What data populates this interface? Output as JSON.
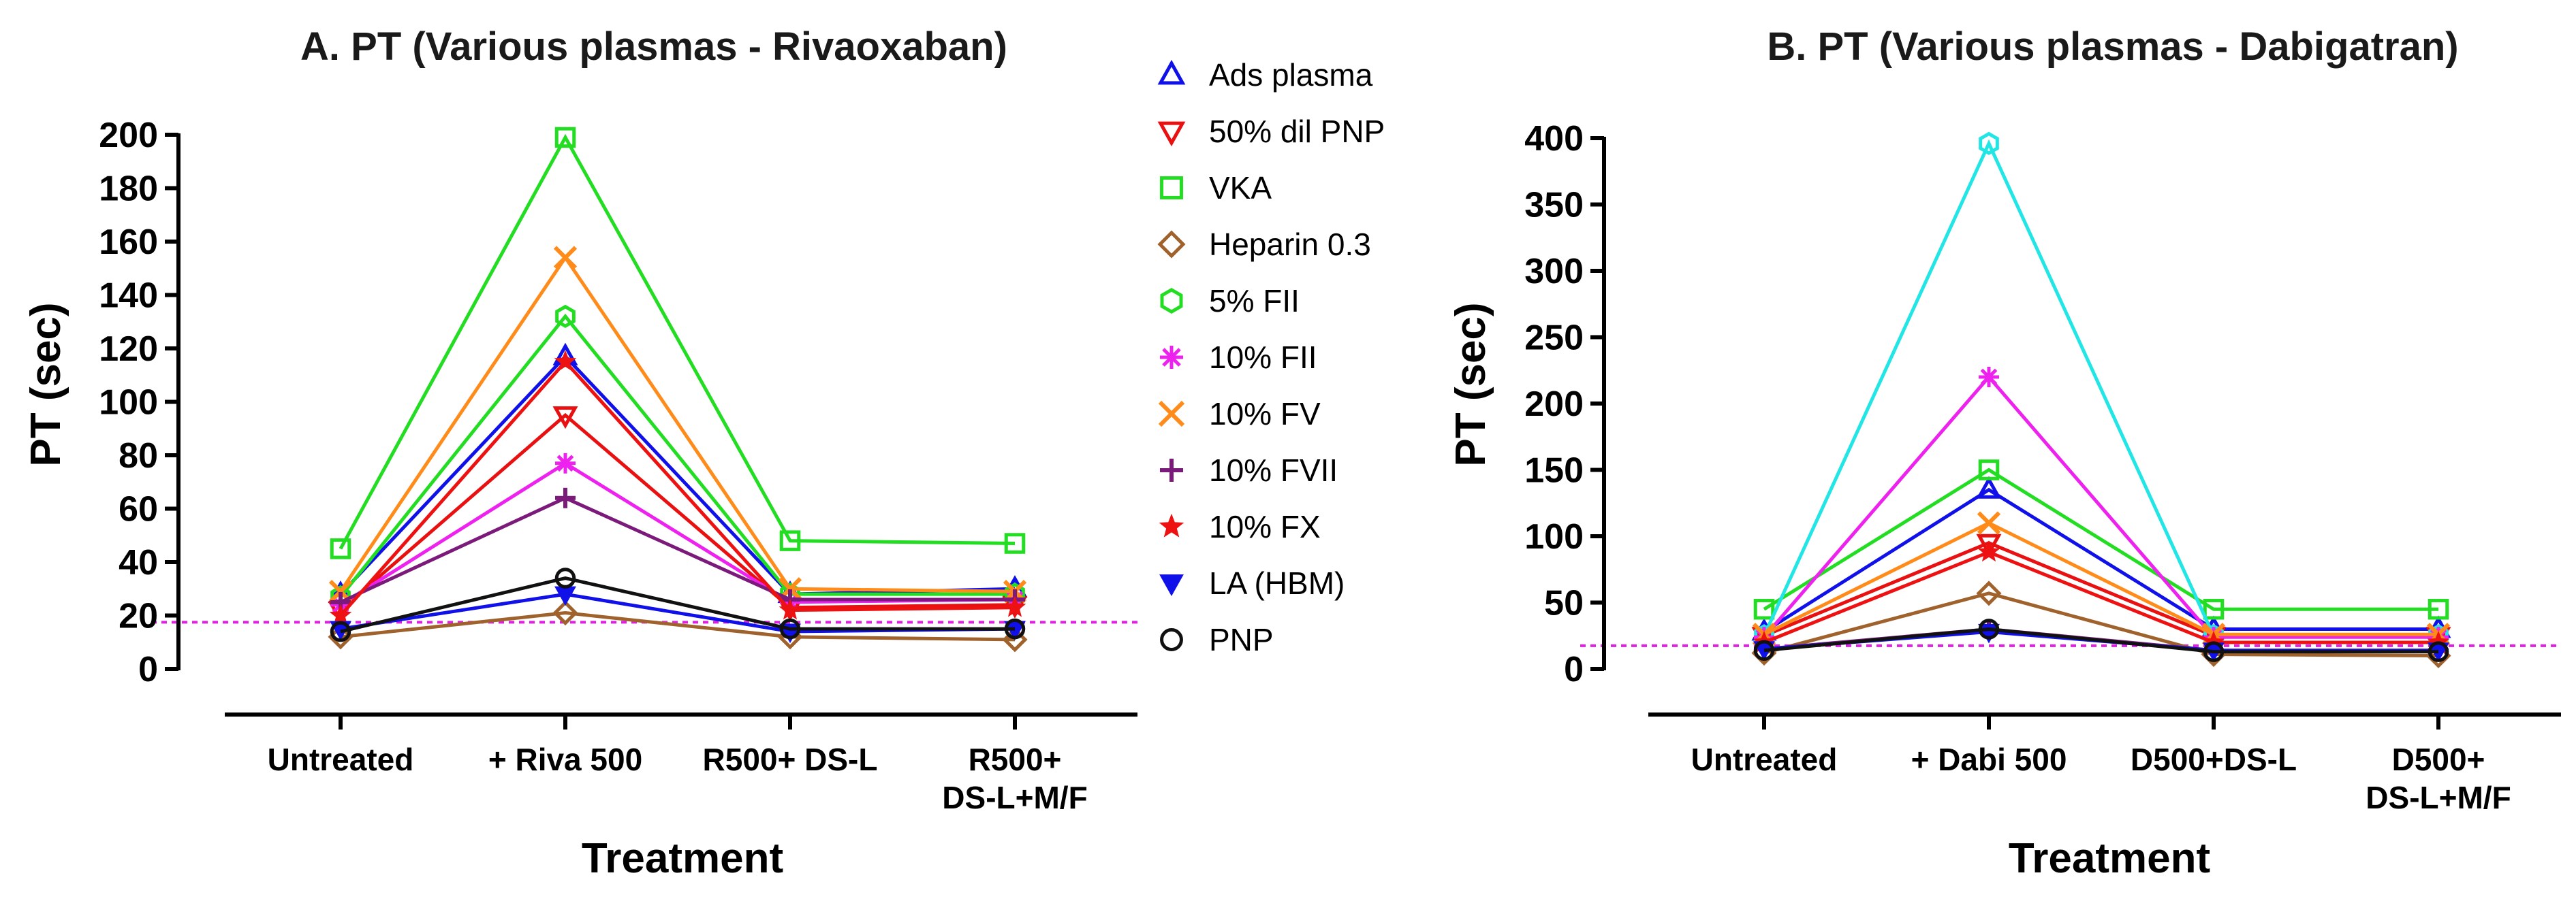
{
  "chart_data": [
    {
      "type": "line",
      "title": "A. PT (Various plasmas - Rivaoxaban)",
      "xlabel": "Treatment",
      "ylabel": "PT (sec)",
      "ylim": [
        0,
        200
      ],
      "yticks": [
        "0",
        "20",
        "40",
        "60",
        "80",
        "100",
        "120",
        "140",
        "160",
        "180",
        "200"
      ],
      "categories": [
        "Untreated",
        "+ Riva 500",
        "R500+ DS-L",
        "R500+\nDS-L+M/F"
      ],
      "reference_line": 17.5,
      "series": [
        {
          "name": "Ads plasma",
          "values": [
            28,
            117,
            28,
            30
          ]
        },
        {
          "name": "50% dil PNP",
          "values": [
            22,
            95,
            23,
            24
          ]
        },
        {
          "name": "VKA",
          "values": [
            45,
            199,
            48,
            47
          ]
        },
        {
          "name": "Heparin 0.3",
          "values": [
            12,
            21,
            12,
            11
          ]
        },
        {
          "name": "5% FII",
          "values": [
            27,
            132,
            28,
            28
          ]
        },
        {
          "name": "10% FII",
          "values": [
            24,
            77,
            25,
            26
          ]
        },
        {
          "name": "10% FV",
          "values": [
            29,
            154,
            30,
            29
          ]
        },
        {
          "name": "10% FVII",
          "values": [
            25,
            64,
            26,
            26
          ]
        },
        {
          "name": "10% FX",
          "values": [
            20,
            115,
            22,
            23
          ]
        },
        {
          "name": "LA (HBM)",
          "values": [
            15,
            28,
            14,
            15
          ]
        },
        {
          "name": "PNP",
          "values": [
            14,
            34,
            15,
            15
          ]
        }
      ]
    },
    {
      "type": "line",
      "title": "B. PT (Various plasmas - Dabigatran)",
      "xlabel": "Treatment",
      "ylabel": "PT (sec)",
      "ylim": [
        0,
        400
      ],
      "yticks": [
        "0",
        "50",
        "100",
        "150",
        "200",
        "250",
        "300",
        "350",
        "400"
      ],
      "categories": [
        "Untreated",
        "+ Dabi 500",
        "D500+DS-L",
        "D500+\nDS-L+M/F"
      ],
      "reference_line": 17.5,
      "series": [
        {
          "name": "Ads plasma",
          "values": [
            28,
            135,
            30,
            30
          ]
        },
        {
          "name": "50% dil PNP",
          "values": [
            25,
            95,
            25,
            25
          ]
        },
        {
          "name": "VKA",
          "values": [
            45,
            150,
            45,
            45
          ]
        },
        {
          "name": "Heparin 0.3",
          "values": [
            12,
            57,
            11,
            10
          ]
        },
        {
          "name": "5% FII",
          "values": [
            25,
            396,
            25,
            25
          ]
        },
        {
          "name": "10% FII",
          "values": [
            24,
            220,
            24,
            24
          ]
        },
        {
          "name": "10% FV",
          "values": [
            26,
            110,
            26,
            26
          ]
        },
        {
          "name": "10% FVII",
          "values": [
            15,
            30,
            14,
            14
          ]
        },
        {
          "name": "10% FX",
          "values": [
            20,
            88,
            20,
            20
          ]
        },
        {
          "name": "LA (HBM)",
          "values": [
            15,
            28,
            14,
            14
          ]
        },
        {
          "name": "PNP",
          "values": [
            14,
            30,
            13,
            13
          ]
        }
      ]
    }
  ],
  "legend": {
    "placement": "between panels",
    "entries": [
      {
        "label": "Ads plasma",
        "marker": "triangle-up",
        "color": "#1010e8"
      },
      {
        "label": "50% dil PNP",
        "marker": "triangle-down",
        "color": "#e81010"
      },
      {
        "label": "VKA",
        "marker": "square",
        "color": "#22dd22"
      },
      {
        "label": "Heparin 0.3",
        "marker": "diamond",
        "color": "#a0622d"
      },
      {
        "label": "5% FII",
        "marker": "hexagon",
        "color": "#22dd22"
      },
      {
        "label": "10% FII",
        "marker": "asterisk",
        "color": "#ee22ee"
      },
      {
        "label": "10% FV",
        "marker": "x-cross",
        "color": "#ff8c1a"
      },
      {
        "label": "10% FVII",
        "marker": "plus",
        "color": "#7b1a7b"
      },
      {
        "label": "10% FX",
        "marker": "star",
        "color": "#ee1111"
      },
      {
        "label": "LA (HBM)",
        "marker": "filled-triangle-down",
        "color": "#1010e8"
      },
      {
        "label": "PNP",
        "marker": "circle",
        "color": "#111111"
      }
    ]
  },
  "series_colors_panel_b": {
    "5% FII": "#22e5e5"
  },
  "reference_line_color": "#e020e0"
}
